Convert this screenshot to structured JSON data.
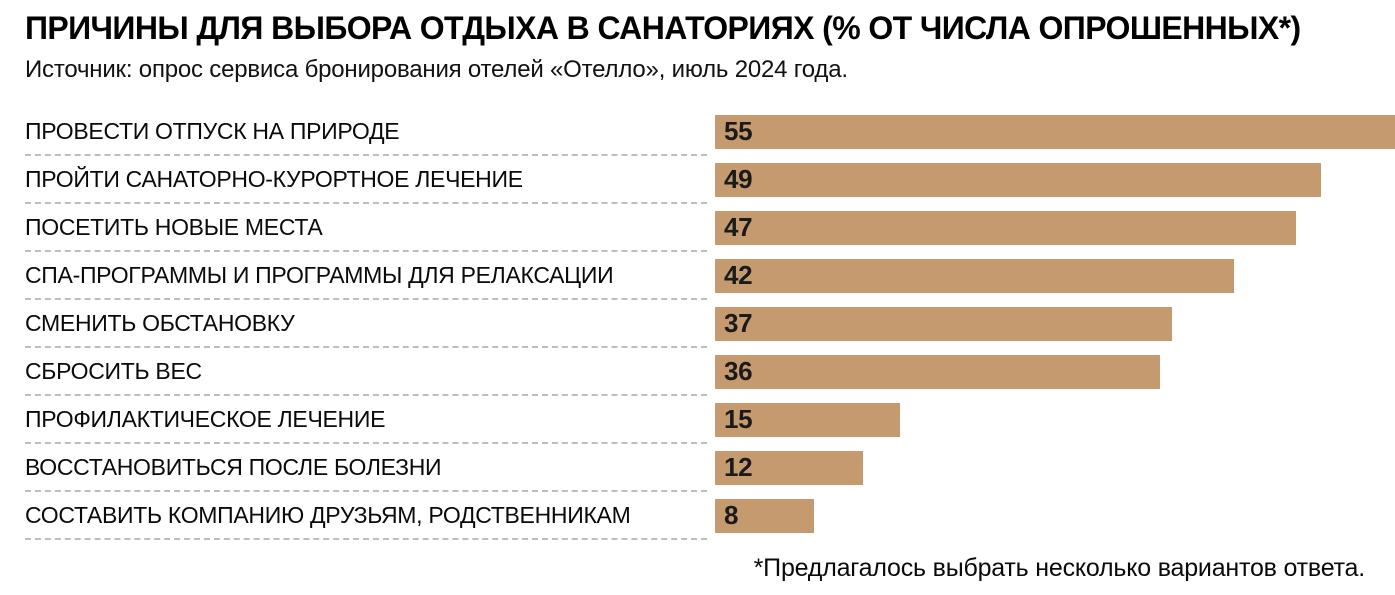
{
  "header": {
    "title": "ПРИЧИНЫ ДЛЯ ВЫБОРА ОТДЫХА В САНАТОРИЯХ (% ОТ ЧИСЛА ОПРОШЕННЫХ*)",
    "source": "Источник: опрос сервиса бронирования отелей «Отелло», июль 2024 года."
  },
  "chart_data": {
    "type": "bar",
    "orientation": "horizontal",
    "title": "ПРИЧИНЫ ДЛЯ ВЫБОРА ОТДЫХА В САНАТОРИЯХ (% ОТ ЧИСЛА ОПРОШЕННЫХ*)",
    "source": "Источник: опрос сервиса бронирования отелей «Отелло», июль 2024 года.",
    "categories": [
      "ПРОВЕСТИ ОТПУСК НА ПРИРОДЕ",
      "ПРОЙТИ САНАТОРНО-КУРОРТНОЕ ЛЕЧЕНИЕ",
      "ПОСЕТИТЬ НОВЫЕ МЕСТА",
      "СПА-ПРОГРАММЫ И ПРОГРАММЫ ДЛЯ РЕЛАКСАЦИИ",
      "СМЕНИТЬ ОБСТАНОВКУ",
      "СБРОСИТЬ ВЕС",
      "ПРОФИЛАКТИЧЕСКОЕ ЛЕЧЕНИЕ",
      "ВОССТАНОВИТЬСЯ ПОСЛЕ БОЛЕЗНИ",
      "СОСТАВИТЬ КОМПАНИЮ ДРУЗЬЯМ, РОДСТВЕННИКАМ"
    ],
    "values": [
      55,
      49,
      47,
      42,
      37,
      36,
      15,
      12,
      8
    ],
    "unit": "%",
    "xlim": [
      0,
      55
    ],
    "value_labels": "inside-start",
    "bar_color": "#c69a6f",
    "grid": false,
    "legend": "none"
  },
  "footnote": "*Предлагалось выбрать несколько вариантов ответа."
}
